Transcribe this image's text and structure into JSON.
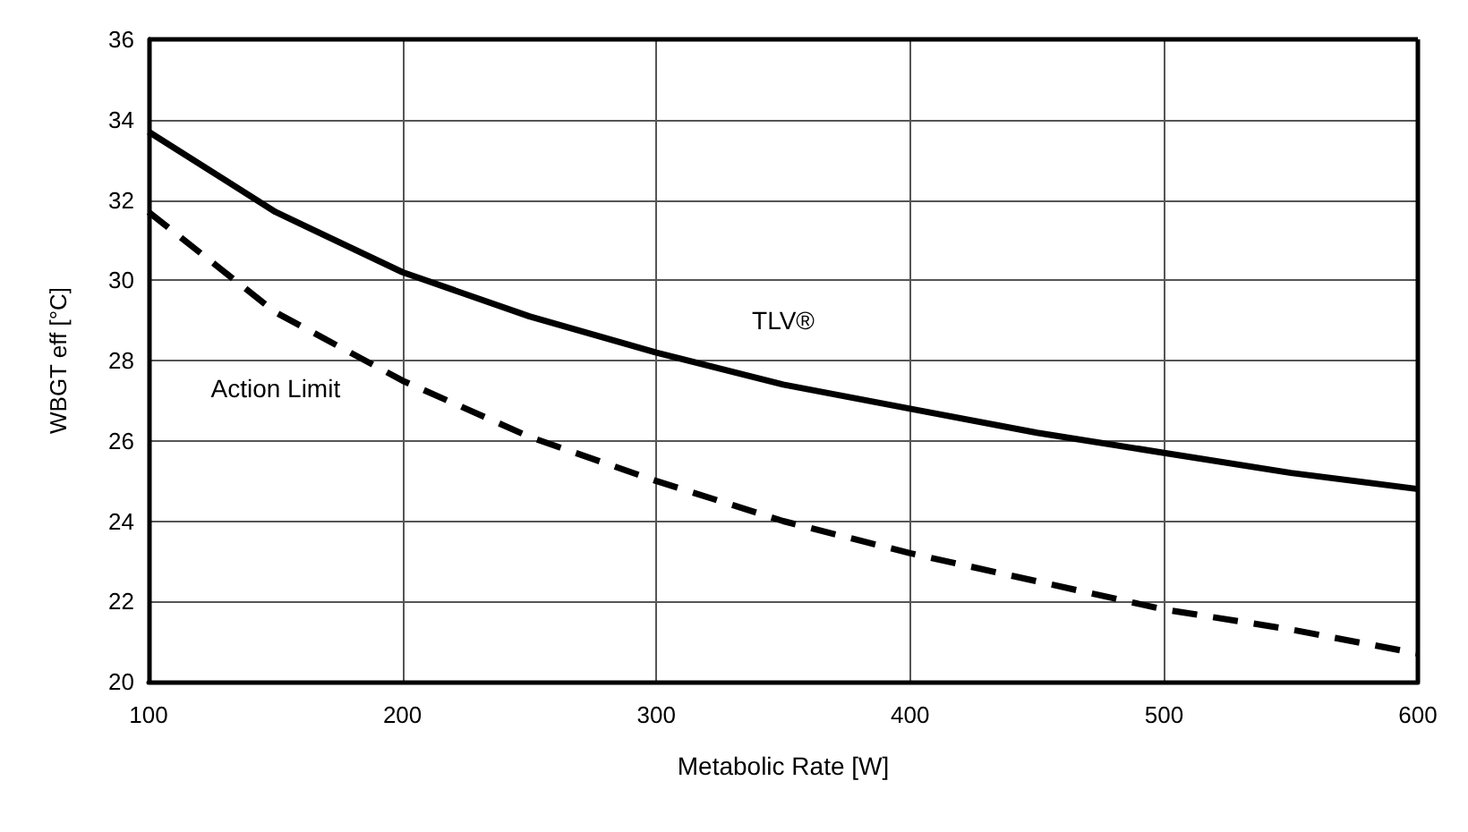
{
  "chart_data": {
    "type": "line",
    "xlabel": "Metabolic Rate [W]",
    "ylabel": "WBGT eff [°C]",
    "xlim": [
      100,
      600
    ],
    "xticks": [
      100,
      200,
      300,
      400,
      500,
      600
    ],
    "ylim": [
      20,
      36
    ],
    "yticks": [
      20,
      22,
      24,
      26,
      28,
      30,
      32,
      34,
      36
    ],
    "grid": true,
    "legend": false,
    "marker": "none",
    "x": [
      100,
      150,
      200,
      250,
      300,
      350,
      400,
      450,
      500,
      550,
      600
    ],
    "series": [
      {
        "name": "TLV®",
        "color": "#000000",
        "line_style": "solid",
        "values": [
          33.7,
          31.7,
          30.2,
          29.1,
          28.2,
          27.4,
          26.8,
          26.2,
          25.7,
          25.2,
          24.8
        ]
      },
      {
        "name": "Action Limit",
        "color": "#000000",
        "line_style": "dashed",
        "values": [
          31.7,
          29.2,
          27.5,
          26.1,
          25.0,
          24.0,
          23.2,
          22.5,
          21.8,
          21.3,
          20.7
        ]
      }
    ]
  }
}
